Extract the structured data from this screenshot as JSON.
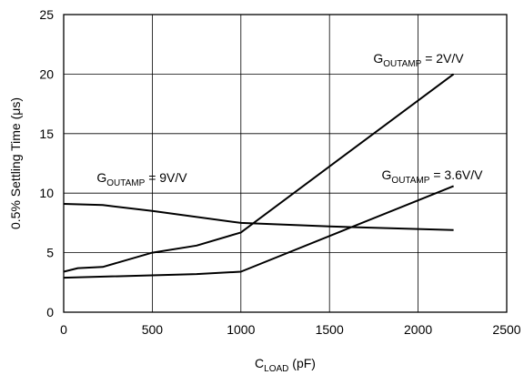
{
  "chart_data": {
    "type": "line",
    "xlabel": {
      "main": "C",
      "sub": "LOAD",
      "tail": " (pF)"
    },
    "ylabel": "0.5% Settling Time (μs)",
    "xlim": [
      0,
      2500
    ],
    "ylim": [
      0,
      25
    ],
    "xticks": [
      "0",
      "500",
      "1000",
      "1500",
      "2000",
      "2500"
    ],
    "yticks": [
      "0",
      "5",
      "10",
      "15",
      "20",
      "25"
    ],
    "grid": true,
    "series": [
      {
        "name_main": "G",
        "name_sub": "OUTAMP",
        "name_tail": " = 2V/V",
        "x": [
          0,
          80,
          220,
          500,
          750,
          1000,
          2200
        ],
        "y": [
          3.4,
          3.7,
          3.8,
          5.0,
          5.6,
          6.7,
          20.0
        ]
      },
      {
        "name_main": "G",
        "name_sub": "OUTAMP",
        "name_tail": " = 3.6V/V",
        "x": [
          0,
          250,
          750,
          1000,
          2200
        ],
        "y": [
          2.9,
          3.0,
          3.2,
          3.4,
          10.6
        ]
      },
      {
        "name_main": "G",
        "name_sub": "OUTAMP",
        "name_tail": " = 9V/V",
        "x": [
          0,
          220,
          500,
          1000,
          1500,
          2200
        ],
        "y": [
          9.1,
          9.0,
          8.5,
          7.5,
          7.2,
          6.9
        ]
      }
    ]
  }
}
